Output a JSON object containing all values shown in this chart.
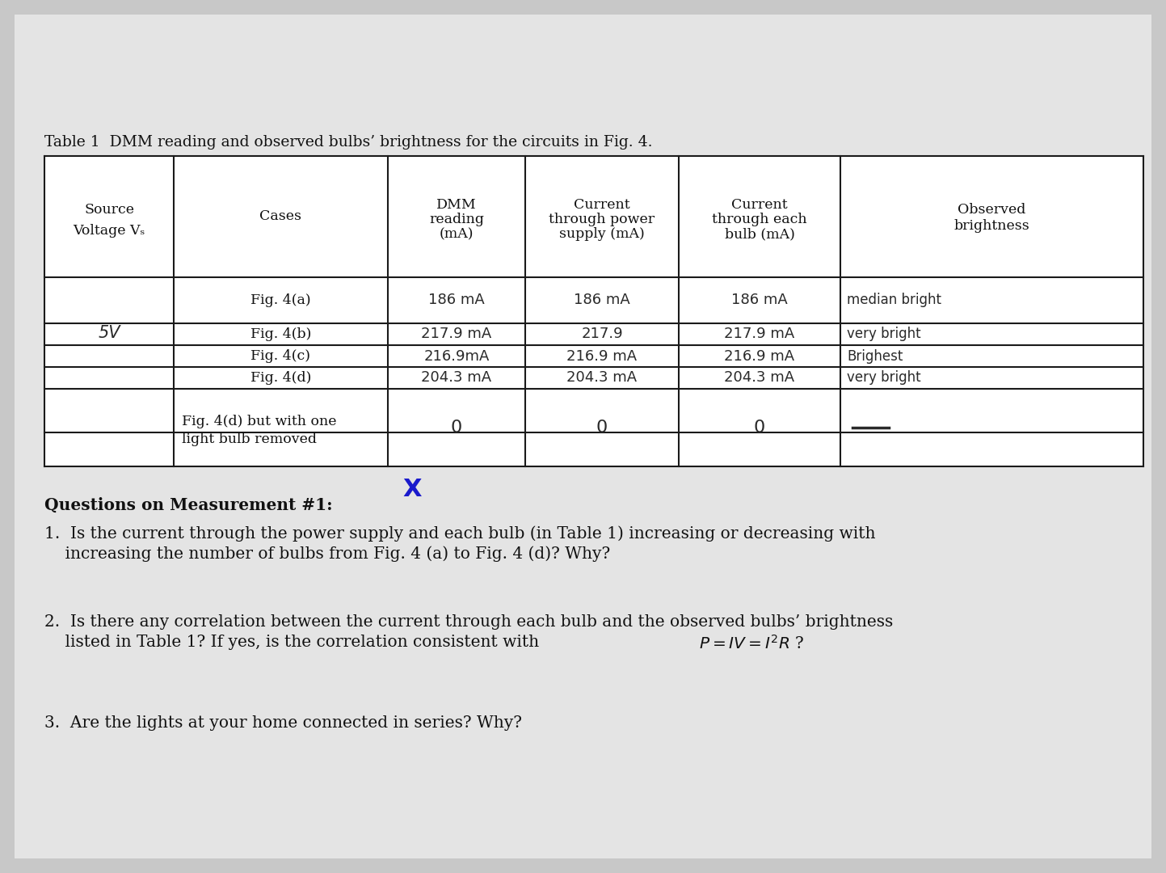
{
  "bg_color": "#cccccc",
  "page_bg": "#e0e0e0",
  "title": "Table 1  DMM reading and observed bulbs’ brightness for the circuits in Fig. 4.",
  "col_headers_line1": [
    "Source",
    "Cases",
    "DMM",
    "Current",
    "Current",
    "Observed"
  ],
  "col_headers_line2": [
    "Voltage Vₛ",
    "",
    "reading",
    "through power",
    "through each",
    "brightness"
  ],
  "col_headers_line3": [
    "",
    "",
    "(mA)",
    "supply (mA)",
    "bulb (mA)",
    ""
  ],
  "questions_header": "Questions on Measurement #1:",
  "q1_line1": "1.  Is the current through the power supply and each bulb (in Table 1) increasing or decreasing with",
  "q1_line2": "    increasing the number of bulbs from Fig. 4 (a) to Fig. 4 (d)? Why?",
  "q2_line1": "2.  Is there any correlation between the current through each bulb and the observed bulbs’ brightness",
  "q2_line2": "    listed in Table 1? If yes, is the correlation consistent with  ",
  "q3": "3.  Are the lights at your home connected in series? Why?"
}
